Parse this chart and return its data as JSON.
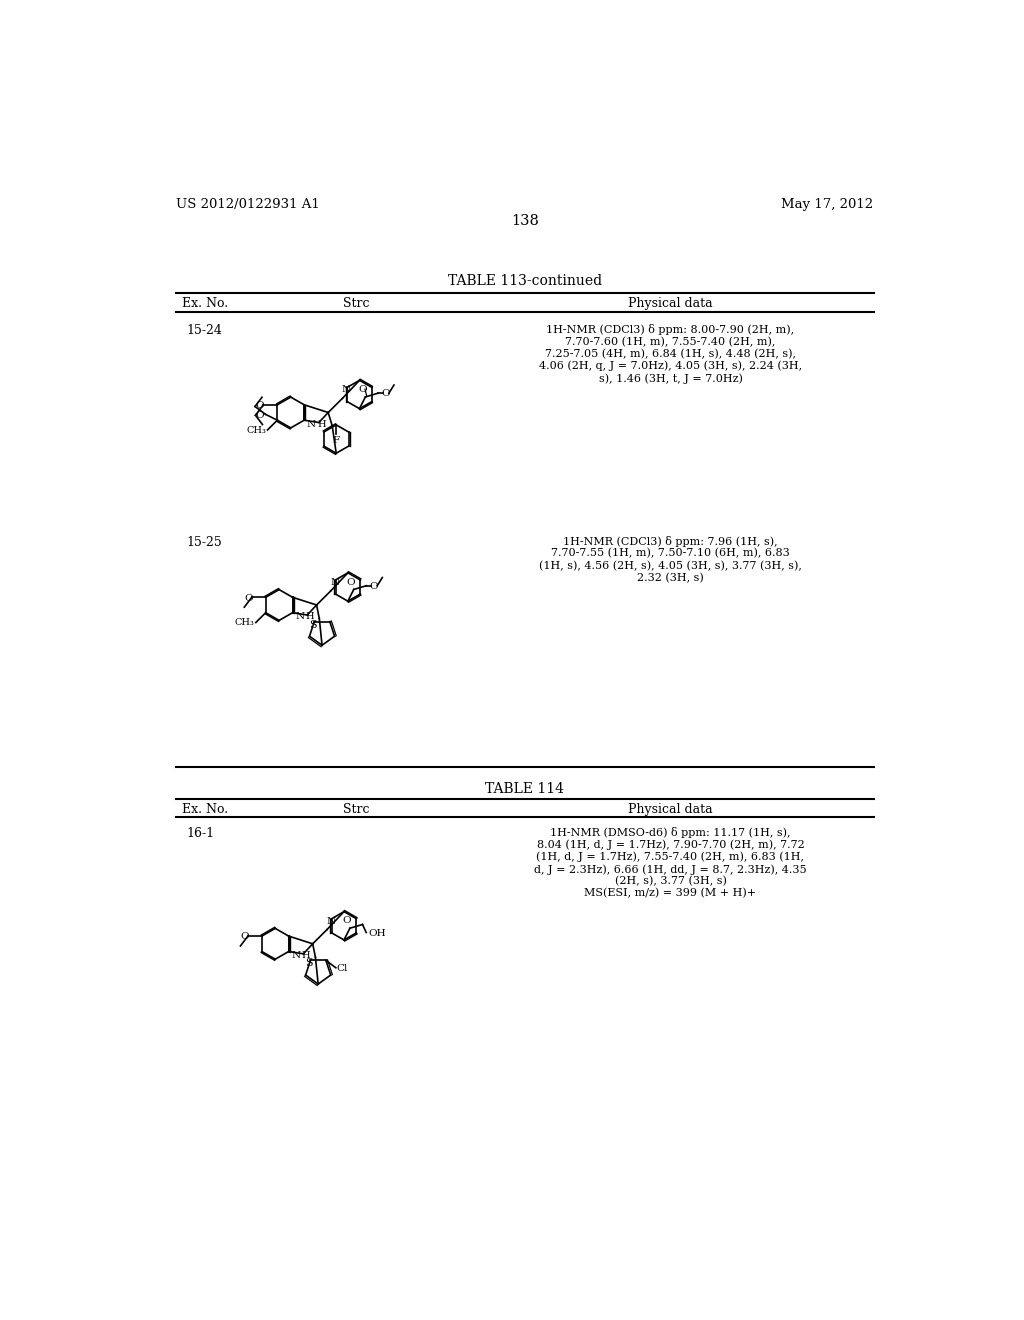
{
  "page_number": "138",
  "patent_left": "US 2012/0122931 A1",
  "patent_right": "May 17, 2012",
  "table1_title": "TABLE 113-continued",
  "table2_title": "TABLE 114",
  "col_headers": [
    "Ex. No.",
    "Strc",
    "Physical data"
  ],
  "row1_exno": "15-24",
  "row1_phys": "1H-NMR (CDCl3) δ ppm: 8.00-7.90 (2H, m),\n7.70-7.60 (1H, m), 7.55-7.40 (2H, m),\n7.25-7.05 (4H, m), 6.84 (1H, s), 4.48 (2H, s),\n4.06 (2H, q, J = 7.0Hz), 4.05 (3H, s), 2.24 (3H,\ns), 1.46 (3H, t, J = 7.0Hz)",
  "row2_exno": "15-25",
  "row2_phys": "1H-NMR (CDCl3) δ ppm: 7.96 (1H, s),\n7.70-7.55 (1H, m), 7.50-7.10 (6H, m), 6.83\n(1H, s), 4.56 (2H, s), 4.05 (3H, s), 3.77 (3H, s),\n2.32 (3H, s)",
  "row3_exno": "16-1",
  "row3_phys": "1H-NMR (DMSO-d6) δ ppm: 11.17 (1H, s),\n8.04 (1H, d, J = 1.7Hz), 7.90-7.70 (2H, m), 7.72\n(1H, d, J = 1.7Hz), 7.55-7.40 (2H, m), 6.83 (1H,\nd, J = 2.3Hz), 6.66 (1H, dd, J = 8.7, 2.3Hz), 4.35\n(2H, s), 3.77 (3H, s)\nMS(ESI, m/z) = 399 (M + H)+"
}
